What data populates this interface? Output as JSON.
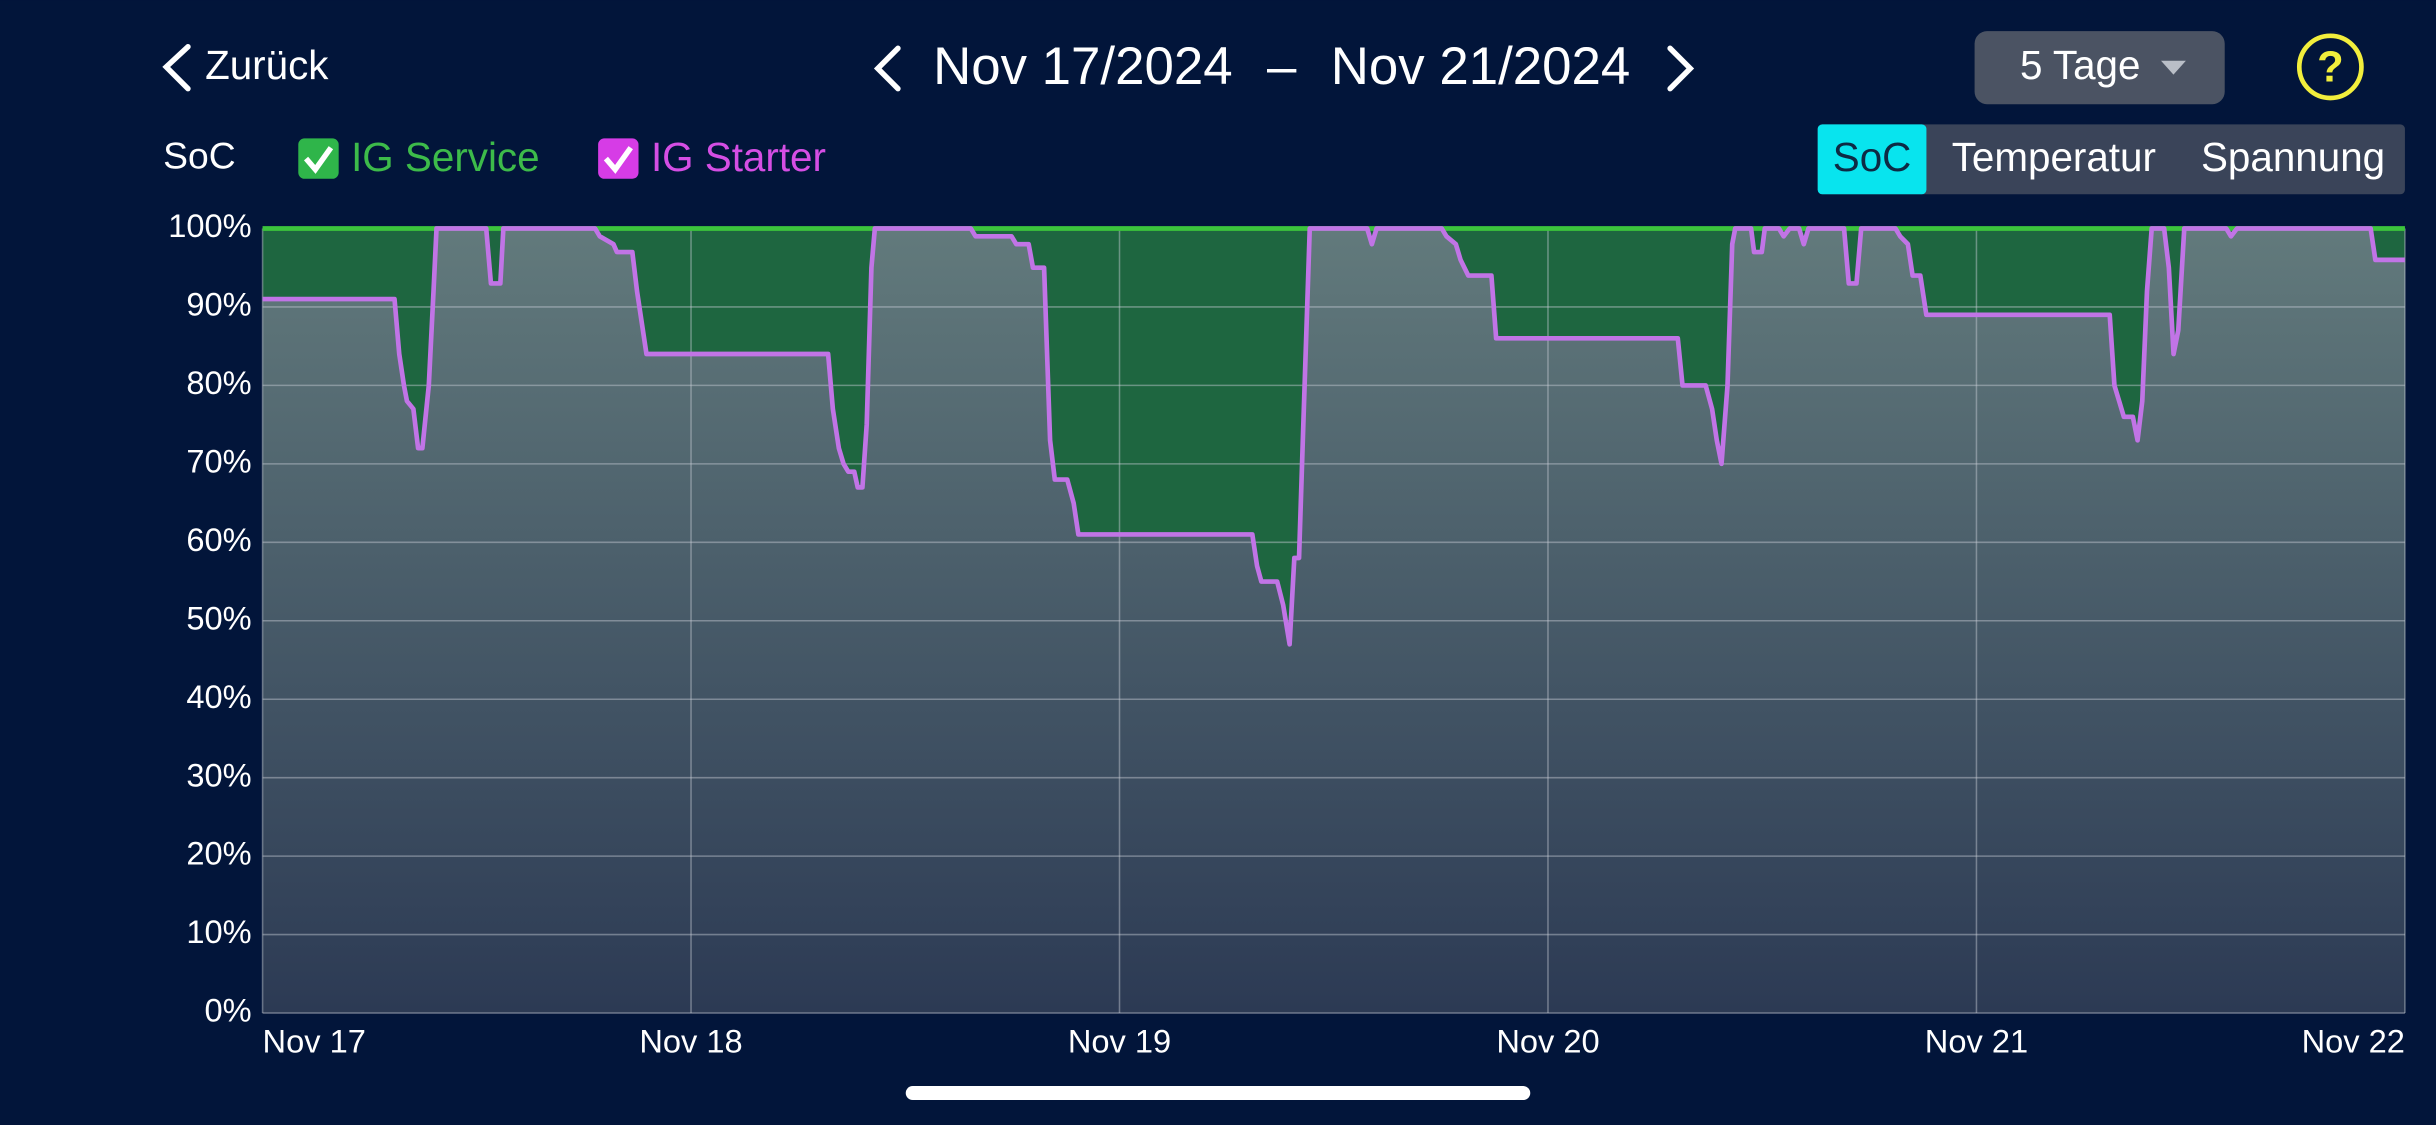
{
  "nav": {
    "back": "Zurück",
    "date_start": "Nov 17/2024",
    "separator": "–",
    "date_end": "Nov 21/2024",
    "range": "5 Tage",
    "help": "?"
  },
  "legend_label": "SoC",
  "tabs": [
    "SoC",
    "Temperatur",
    "Spannung"
  ],
  "active_tab": 0,
  "chart_data": {
    "type": "area",
    "series": [
      {
        "name": "IG Service",
        "color": "#3cc43c",
        "fill": "#1e6640",
        "x": [
          0,
          5
        ],
        "values": [
          100,
          100
        ]
      },
      {
        "name": "IG Starter",
        "color": "#c174e6",
        "fill": [
          "#627a7c",
          "#2c3a54"
        ],
        "x": [
          0,
          0.308,
          0.319,
          0.33,
          0.337,
          0.352,
          0.363,
          0.373,
          0.388,
          0.399,
          0.406,
          0.522,
          0.533,
          0.555,
          0.562,
          0.776,
          0.787,
          0.819,
          0.827,
          0.863,
          0.874,
          0.885,
          0.896,
          1.32,
          1.331,
          1.345,
          1.356,
          1.367,
          1.381,
          1.389,
          1.4,
          1.41,
          1.421,
          1.429,
          1.653,
          1.664,
          1.748,
          1.759,
          1.788,
          1.798,
          1.824,
          1.838,
          1.849,
          1.878,
          1.893,
          1.904,
          2.31,
          2.321,
          2.331,
          2.368,
          2.382,
          2.397,
          2.408,
          2.419,
          2.429,
          2.444,
          2.578,
          2.589,
          2.6,
          2.752,
          2.763,
          2.785,
          2.796,
          2.814,
          2.868,
          2.879,
          3.303,
          3.314,
          3.368,
          3.383,
          3.394,
          3.405,
          3.419,
          3.43,
          3.437,
          3.474,
          3.481,
          3.499,
          3.506,
          3.539,
          3.55,
          3.564,
          3.586,
          3.597,
          3.608,
          3.691,
          3.702,
          3.72,
          3.731,
          3.811,
          3.822,
          3.84,
          3.851,
          3.869,
          3.883,
          4.311,
          4.322,
          4.333,
          4.344,
          4.365,
          4.376,
          4.387,
          4.398,
          4.409,
          4.438,
          4.449,
          4.46,
          4.471,
          4.485,
          4.583,
          4.594,
          4.608,
          4.92,
          4.931,
          5
        ],
        "values": [
          91,
          91,
          84,
          80,
          78,
          77,
          72,
          72,
          80,
          92,
          100,
          100,
          93,
          93,
          100,
          100,
          99,
          98,
          97,
          97,
          92,
          88,
          84,
          84,
          77,
          72,
          70,
          69,
          69,
          67,
          67,
          75,
          95,
          100,
          100,
          99,
          99,
          98,
          98,
          95,
          95,
          73,
          68,
          68,
          65,
          61,
          61,
          57,
          55,
          55,
          52,
          47,
          58,
          58,
          75,
          100,
          100,
          98,
          100,
          100,
          99,
          98,
          96,
          94,
          94,
          86,
          86,
          80,
          80,
          77,
          73,
          70,
          80,
          98,
          100,
          100,
          97,
          97,
          100,
          100,
          99,
          100,
          100,
          98,
          100,
          100,
          93,
          93,
          100,
          100,
          99,
          98,
          94,
          94,
          89,
          89,
          80,
          78,
          76,
          76,
          73,
          78,
          92,
          100,
          100,
          95,
          84,
          87,
          100,
          100,
          99,
          100,
          100,
          96,
          96
        ]
      }
    ],
    "xlim": [
      0,
      5
    ],
    "xticks": [
      {
        "value": 0,
        "label": "Nov 17"
      },
      {
        "value": 1,
        "label": "Nov 18"
      },
      {
        "value": 2,
        "label": "Nov 19"
      },
      {
        "value": 3,
        "label": "Nov 20"
      },
      {
        "value": 4,
        "label": "Nov 21"
      },
      {
        "value": 5,
        "label": "Nov 22"
      }
    ],
    "ylim": [
      0,
      100
    ],
    "yticks": [
      {
        "value": 0,
        "label": "0%"
      },
      {
        "value": 10,
        "label": "10%"
      },
      {
        "value": 20,
        "label": "20%"
      },
      {
        "value": 30,
        "label": "30%"
      },
      {
        "value": 40,
        "label": "40%"
      },
      {
        "value": 50,
        "label": "50%"
      },
      {
        "value": 60,
        "label": "60%"
      },
      {
        "value": 70,
        "label": "70%"
      },
      {
        "value": 80,
        "label": "80%"
      },
      {
        "value": 90,
        "label": "90%"
      },
      {
        "value": 100,
        "label": "100%"
      }
    ],
    "grid": true
  }
}
